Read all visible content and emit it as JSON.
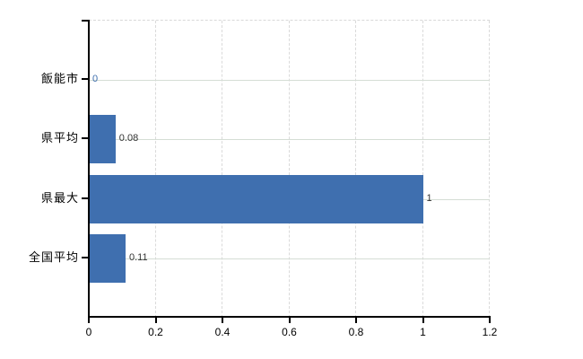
{
  "chart_data": {
    "type": "bar",
    "orientation": "horizontal",
    "title": "",
    "xlabel": "",
    "ylabel": "",
    "categories": [
      "飯能市",
      "県平均",
      "県最大",
      "全国平均"
    ],
    "values": [
      0,
      0.08,
      1,
      0.11
    ],
    "value_labels": [
      "0",
      "0.08",
      "1",
      "0.11"
    ],
    "value_label_colors": [
      "#3F6FAF",
      "#333333",
      "#333333",
      "#333333"
    ],
    "xlim": [
      0,
      1.2
    ],
    "x_tick_labels": [
      "0",
      "0.2",
      "0.4",
      "0.6",
      "0.8",
      "1",
      "1.2"
    ],
    "grid": true,
    "legend": false,
    "bar_color": "#3F6FAF",
    "axis_color": "#000000",
    "gridline_color_vertical": "#dadada",
    "gridline_color_horizontal": "#d5ddd5",
    "background_color": "#ffffff"
  }
}
